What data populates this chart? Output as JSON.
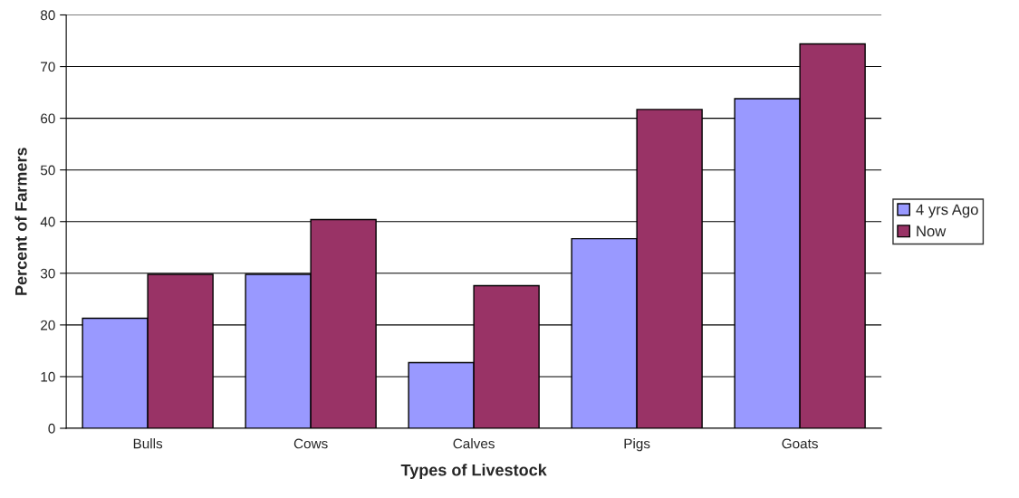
{
  "chart_data": {
    "type": "bar",
    "xlabel": "Types of Livestock",
    "ylabel": "Percent of Farmers",
    "categories": [
      "Bulls",
      "Cows",
      "Calves",
      "Pigs",
      "Goats"
    ],
    "series": [
      {
        "name": "4 yrs Ago",
        "color": "#9999ff",
        "values": [
          21.3,
          29.8,
          12.7,
          36.7,
          63.8
        ]
      },
      {
        "name": "Now",
        "color": "#993366",
        "values": [
          29.8,
          40.4,
          27.6,
          61.7,
          74.4
        ]
      }
    ],
    "ylim": [
      0,
      80
    ],
    "yticks": [
      0,
      10,
      20,
      30,
      40,
      50,
      60,
      70,
      80
    ],
    "grid": "y",
    "legend": "right"
  }
}
